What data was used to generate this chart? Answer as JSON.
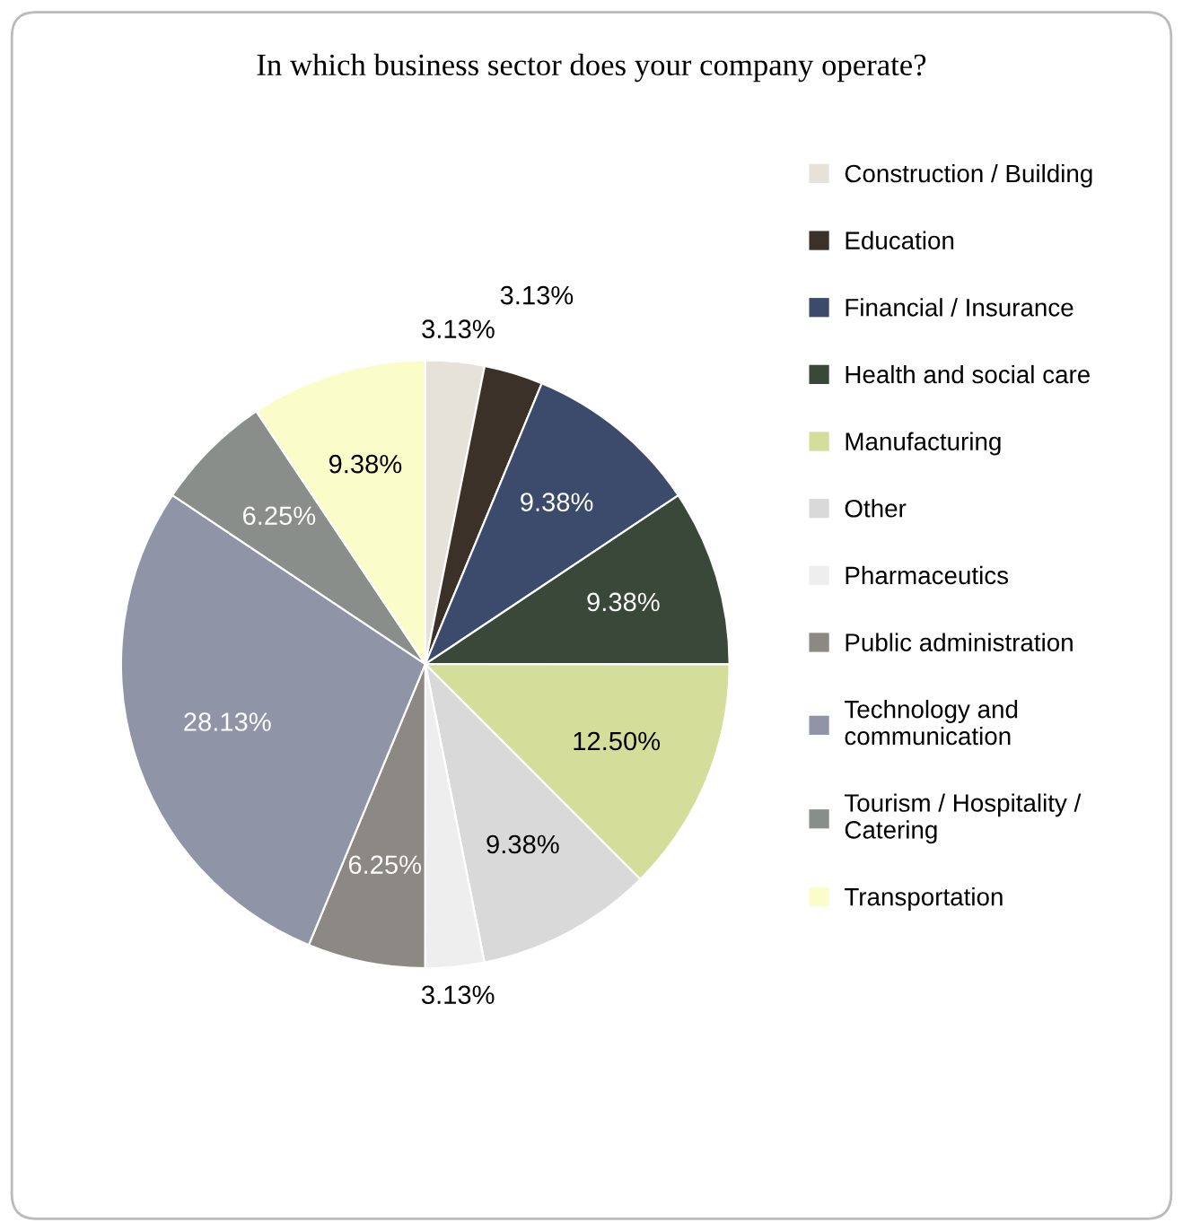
{
  "chart_data": {
    "type": "pie",
    "title": "In which business sector does your company operate?",
    "categories": [
      "Construction / Building",
      "Education",
      "Financial / Insurance",
      "Health and social care",
      "Manufacturing",
      "Other",
      "Pharmaceutics",
      "Public administration",
      "Technology and\ncommunication",
      "Tourism / Hospitality /\nCatering",
      "Transportation"
    ],
    "values": [
      3.13,
      3.13,
      9.38,
      9.38,
      12.5,
      9.38,
      3.13,
      6.25,
      28.13,
      6.25,
      9.38
    ],
    "value_labels": [
      "3.13%",
      "3.13%",
      "9.38%",
      "9.38%",
      "12.50%",
      "9.38%",
      "3.13%",
      "6.25%",
      "28.13%",
      "6.25%",
      "9.38%"
    ],
    "colors": [
      "#e6e2da",
      "#3b3128",
      "#3c4a6c",
      "#394839",
      "#d5dd9b",
      "#d9d9d9",
      "#eeeeee",
      "#8c8884",
      "#8f94a7",
      "#8a8e8a",
      "#fafcc9"
    ],
    "legend": "right"
  }
}
